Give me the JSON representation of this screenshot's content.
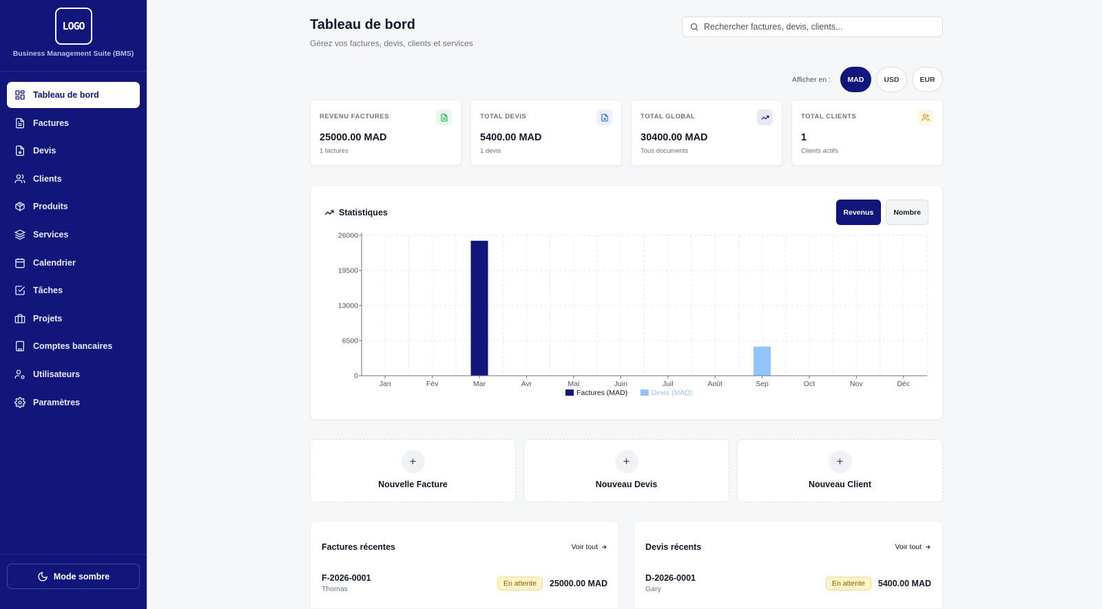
{
  "app": {
    "logo_text": "LOGO",
    "name": "Business Management Suite (BMS)"
  },
  "sidebar": {
    "items": [
      {
        "label": "Tableau de bord",
        "icon": "dashboard-icon"
      },
      {
        "label": "Factures",
        "icon": "invoice-icon"
      },
      {
        "label": "Devis",
        "icon": "quote-icon"
      },
      {
        "label": "Clients",
        "icon": "users-icon"
      },
      {
        "label": "Produits",
        "icon": "package-icon"
      },
      {
        "label": "Services",
        "icon": "layers-icon"
      },
      {
        "label": "Calendrier",
        "icon": "calendar-icon"
      },
      {
        "label": "Tâches",
        "icon": "checkbox-icon"
      },
      {
        "label": "Projets",
        "icon": "briefcase-icon"
      },
      {
        "label": "Comptes bancaires",
        "icon": "bank-icon"
      },
      {
        "label": "Utilisateurs",
        "icon": "user-settings-icon"
      },
      {
        "label": "Paramètres",
        "icon": "gear-icon"
      }
    ],
    "dark_mode_label": "Mode sombre"
  },
  "header": {
    "title": "Tableau de bord",
    "subtitle": "Gérez vos factures, devis, clients et services",
    "search_placeholder": "Rechercher factures, devis, clients..."
  },
  "currency": {
    "label": "Afficher en :",
    "options": [
      "MAD",
      "USD",
      "EUR"
    ],
    "selected": "MAD"
  },
  "stats": [
    {
      "label": "REVENU FACTURES",
      "value": "25000.00 MAD",
      "sub": "1 factures",
      "icon": "document-icon",
      "icon_color": "#16a34a",
      "icon_bg": "#eaf7ee"
    },
    {
      "label": "TOTAL DEVIS",
      "value": "5400.00 MAD",
      "sub": "1 devis",
      "icon": "quote-icon",
      "icon_color": "#2563eb",
      "icon_bg": "#eaf0fd"
    },
    {
      "label": "TOTAL GLOBAL",
      "value": "30400.00 MAD",
      "sub": "Tous documents",
      "icon": "trending-up-icon",
      "icon_color": "#12157a",
      "icon_bg": "#e7e8f5"
    },
    {
      "label": "TOTAL CLIENTS",
      "value": "1",
      "sub": "Clients actifs",
      "icon": "users-icon",
      "icon_color": "#ca8a04",
      "icon_bg": "#fdf7e3"
    }
  ],
  "statistics": {
    "title": "Statistiques",
    "toggle": [
      "Revenus",
      "Nombre"
    ],
    "toggle_selected": "Revenus"
  },
  "chart_data": {
    "type": "bar",
    "categories": [
      "Jan",
      "Fév",
      "Mar",
      "Avr",
      "Mai",
      "Juin",
      "Juil",
      "Août",
      "Sep",
      "Oct",
      "Nov",
      "Déc"
    ],
    "series": [
      {
        "name": "Factures (MAD)",
        "values": [
          0,
          0,
          25000,
          0,
          0,
          0,
          0,
          0,
          0,
          0,
          0,
          0
        ],
        "color": "#12157a"
      },
      {
        "name": "Devis (MAD)",
        "values": [
          0,
          0,
          0,
          0,
          0,
          0,
          0,
          0,
          5400,
          0,
          0,
          0
        ],
        "color": "#93c5fd"
      }
    ],
    "yticks": [
      0,
      6500,
      13000,
      19500,
      26000
    ],
    "ylim": [
      0,
      26000
    ],
    "grid": true,
    "legend": "bottom-center"
  },
  "actions": [
    {
      "label": "Nouvelle Facture",
      "icon": "plus-icon"
    },
    {
      "label": "Nouveau Devis",
      "icon": "plus-icon"
    },
    {
      "label": "Nouveau Client",
      "icon": "plus-icon"
    }
  ],
  "recent_invoices": {
    "title": "Factures récentes",
    "see_all": "Voir tout",
    "rows": [
      {
        "id": "F-2026-0001",
        "client": "Thomas",
        "status": "En attente",
        "amount": "25000.00 MAD"
      }
    ]
  },
  "recent_quotes": {
    "title": "Devis récents",
    "see_all": "Voir tout",
    "rows": [
      {
        "id": "D-2026-0001",
        "client": "Gary",
        "status": "En attente",
        "amount": "5400.00 MAD"
      }
    ]
  }
}
